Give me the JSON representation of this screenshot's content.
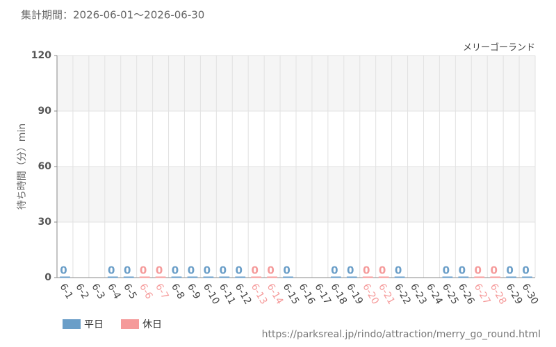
{
  "chart_data": {
    "type": "bar",
    "title": "集計期間：2026-06-01～2026-06-30",
    "subtitle": "メリーゴーランド",
    "y_label": "待ち時間（分）min",
    "source": "https://parksreal.jp/rindo/attraction/merry_go_round.html",
    "categories": [
      "6-1",
      "6-2",
      "6-3",
      "6-4",
      "6-5",
      "6-6",
      "6-7",
      "6-8",
      "6-9",
      "6-10",
      "6-11",
      "6-12",
      "6-13",
      "6-14",
      "6-15",
      "6-16",
      "6-17",
      "6-18",
      "6-19",
      "6-20",
      "6-21",
      "6-22",
      "6-23",
      "6-24",
      "6-25",
      "6-26",
      "6-27",
      "6-28",
      "6-29",
      "6-30"
    ],
    "series": [
      {
        "name": "平日",
        "color": "#6a9ec8",
        "values": [
          0,
          null,
          null,
          0,
          0,
          null,
          null,
          0,
          0,
          0,
          0,
          0,
          null,
          null,
          0,
          null,
          null,
          0,
          0,
          null,
          null,
          0,
          null,
          null,
          0,
          0,
          null,
          null,
          0,
          0
        ]
      },
      {
        "name": "休日",
        "color": "#f59a9a",
        "values": [
          null,
          null,
          null,
          null,
          null,
          0,
          0,
          null,
          null,
          null,
          null,
          null,
          0,
          0,
          null,
          null,
          null,
          null,
          null,
          0,
          0,
          null,
          null,
          null,
          null,
          null,
          0,
          0,
          null,
          null
        ]
      }
    ],
    "ylim": [
      0,
      120
    ],
    "yticks": [
      0,
      30,
      60,
      90,
      120
    ],
    "grid": true,
    "legend": "bottom-left"
  }
}
